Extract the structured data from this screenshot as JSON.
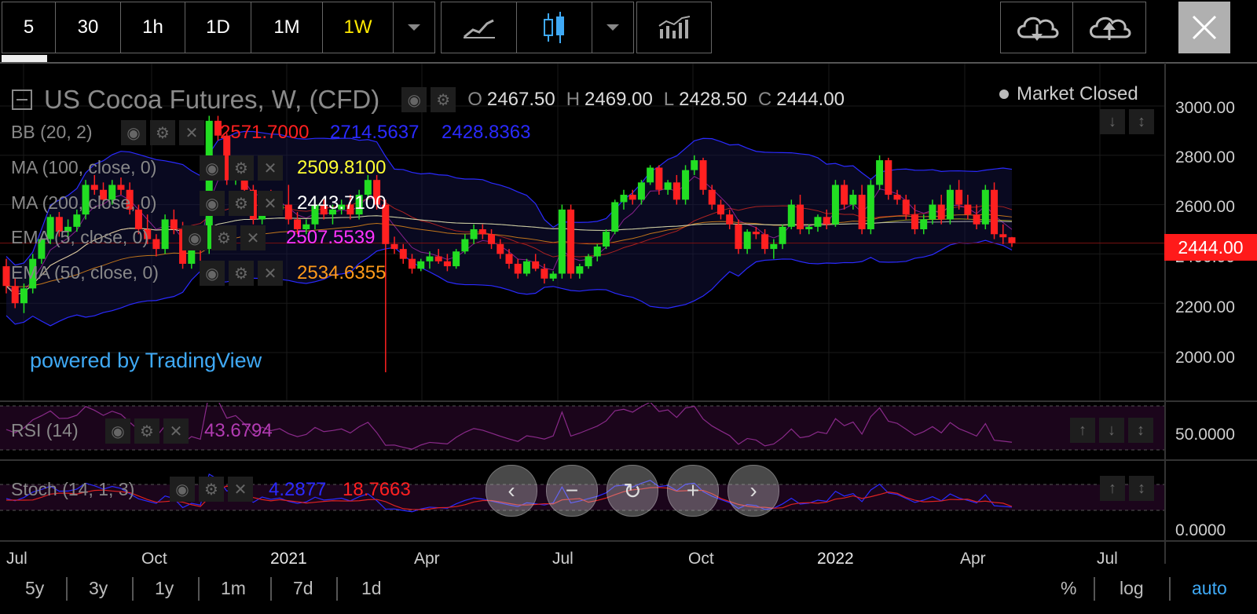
{
  "toolbar": {
    "intervals": [
      "5",
      "30",
      "1h",
      "1D",
      "1M",
      "1W"
    ],
    "active_interval": "1W"
  },
  "chart": {
    "title": "US Cocoa Futures, W, (CFD)",
    "ohlc": {
      "o_label": "O",
      "o": "2467.50",
      "h_label": "H",
      "h": "2469.00",
      "l_label": "L",
      "l": "2428.50",
      "c_label": "C",
      "c": "2444.00"
    },
    "market_status": "Market Closed",
    "last_price": "2444.00",
    "watermark": "powered by TradingView"
  },
  "indicators": {
    "bb": {
      "label": "BB (20, 2)",
      "v1": "2571.7000",
      "v2": "2714.5637",
      "v3": "2428.8363",
      "c1": "#ff2020",
      "c2": "#2a2aff",
      "c3": "#2a2aff"
    },
    "ma100": {
      "label": "MA (100, close, 0)",
      "value": "2509.8100",
      "color": "#ffff33"
    },
    "ma200": {
      "label": "MA (200, close, 0)",
      "value": "2443.7100",
      "color": "#ffffff"
    },
    "ema_a": {
      "label": "EMA (5, close, 0)",
      "value": "2507.5539",
      "color": "#ff33ff"
    },
    "ema50": {
      "label": "EMA (50, close, 0)",
      "value": "2534.6355",
      "color": "#ff9a1a"
    },
    "rsi": {
      "label": "RSI (14)",
      "value": "43.6794",
      "color": "#b23bb2"
    },
    "stoch": {
      "label": "Stoch (14, 1, 3)",
      "k": "4.2877",
      "d": "18.7663",
      "kc": "#2a2aff",
      "dc": "#ff2020"
    }
  },
  "y_axis": [
    "3000.00",
    "2800.00",
    "2600.00",
    "2400.00",
    "2200.00",
    "2000.00"
  ],
  "rsi_axis": [
    "50.0000"
  ],
  "stoch_axis": [
    "0.0000"
  ],
  "x_axis": [
    "Jul",
    "Oct",
    "2021",
    "Apr",
    "Jul",
    "Oct",
    "2022",
    "Apr",
    "Jul"
  ],
  "ranges": [
    "5y",
    "3y",
    "1y",
    "1m",
    "7d",
    "1d"
  ],
  "scale_options": {
    "percent": "%",
    "log": "log",
    "auto": "auto"
  },
  "colors": {
    "up": "#22dd22",
    "down": "#ff2020",
    "accent": "#ffea00",
    "auto": "#3fa9f5",
    "watermark": "#3fa9f5"
  },
  "chart_data": {
    "type": "candlestick",
    "title": "US Cocoa Futures, W, (CFD)",
    "ylim": [
      1900,
      3050
    ],
    "x_ticks": [
      "Jul",
      "Oct",
      "2021",
      "Apr",
      "Jul",
      "Oct",
      "2022",
      "Apr",
      "Jul"
    ],
    "y_ticks": [
      2000,
      2200,
      2400,
      2600,
      2800,
      3000
    ],
    "candles": [
      [
        2350,
        2380,
        2240,
        2270
      ],
      [
        2270,
        2300,
        2180,
        2200
      ],
      [
        2200,
        2280,
        2160,
        2260
      ],
      [
        2260,
        2400,
        2240,
        2380
      ],
      [
        2380,
        2470,
        2360,
        2460
      ],
      [
        2460,
        2560,
        2440,
        2550
      ],
      [
        2550,
        2570,
        2470,
        2490
      ],
      [
        2490,
        2540,
        2460,
        2510
      ],
      [
        2510,
        2580,
        2490,
        2560
      ],
      [
        2560,
        2700,
        2540,
        2680
      ],
      [
        2680,
        2720,
        2640,
        2660
      ],
      [
        2660,
        2690,
        2600,
        2620
      ],
      [
        2620,
        2700,
        2600,
        2680
      ],
      [
        2680,
        2710,
        2640,
        2660
      ],
      [
        2660,
        2690,
        2560,
        2580
      ],
      [
        2580,
        2600,
        2480,
        2500
      ],
      [
        2500,
        2560,
        2440,
        2460
      ],
      [
        2460,
        2480,
        2390,
        2420
      ],
      [
        2420,
        2560,
        2400,
        2540
      ],
      [
        2540,
        2580,
        2480,
        2500
      ],
      [
        2500,
        2530,
        2340,
        2360
      ],
      [
        2360,
        2460,
        2340,
        2440
      ],
      [
        2440,
        2460,
        2360,
        2420
      ],
      [
        2420,
        2960,
        2400,
        2940
      ],
      [
        2940,
        2960,
        2860,
        2880
      ],
      [
        2880,
        2890,
        2680,
        2700
      ],
      [
        2700,
        2760,
        2680,
        2740
      ],
      [
        2740,
        2760,
        2640,
        2660
      ],
      [
        2660,
        2680,
        2520,
        2540
      ],
      [
        2540,
        2640,
        2520,
        2620
      ],
      [
        2620,
        2660,
        2560,
        2580
      ],
      [
        2580,
        2640,
        2560,
        2600
      ],
      [
        2600,
        2680,
        2520,
        2540
      ],
      [
        2540,
        2570,
        2480,
        2500
      ],
      [
        2500,
        2540,
        2480,
        2520
      ],
      [
        2520,
        2620,
        2500,
        2600
      ],
      [
        2600,
        2620,
        2540,
        2560
      ],
      [
        2560,
        2600,
        2520,
        2580
      ],
      [
        2580,
        2620,
        2560,
        2600
      ],
      [
        2600,
        2640,
        2540,
        2560
      ],
      [
        2560,
        2660,
        2540,
        2640
      ],
      [
        2640,
        2720,
        2620,
        2700
      ],
      [
        2700,
        2720,
        2580,
        2600
      ],
      [
        2600,
        2620,
        1920,
        2440
      ],
      [
        2440,
        2470,
        2400,
        2420
      ],
      [
        2420,
        2440,
        2360,
        2380
      ],
      [
        2380,
        2400,
        2320,
        2340
      ],
      [
        2340,
        2380,
        2330,
        2370
      ],
      [
        2370,
        2410,
        2340,
        2390
      ],
      [
        2390,
        2420,
        2360,
        2370
      ],
      [
        2370,
        2400,
        2330,
        2350
      ],
      [
        2350,
        2420,
        2340,
        2410
      ],
      [
        2410,
        2480,
        2400,
        2460
      ],
      [
        2460,
        2520,
        2440,
        2500
      ],
      [
        2500,
        2520,
        2460,
        2480
      ],
      [
        2480,
        2500,
        2420,
        2440
      ],
      [
        2440,
        2460,
        2380,
        2400
      ],
      [
        2400,
        2420,
        2340,
        2360
      ],
      [
        2360,
        2380,
        2300,
        2320
      ],
      [
        2320,
        2380,
        2310,
        2370
      ],
      [
        2370,
        2400,
        2330,
        2340
      ],
      [
        2340,
        2360,
        2280,
        2300
      ],
      [
        2300,
        2330,
        2290,
        2320
      ],
      [
        2320,
        2600,
        2300,
        2580
      ],
      [
        2580,
        2600,
        2300,
        2320
      ],
      [
        2320,
        2360,
        2300,
        2350
      ],
      [
        2350,
        2400,
        2340,
        2390
      ],
      [
        2390,
        2440,
        2370,
        2430
      ],
      [
        2430,
        2500,
        2420,
        2490
      ],
      [
        2490,
        2620,
        2480,
        2610
      ],
      [
        2610,
        2660,
        2580,
        2640
      ],
      [
        2640,
        2660,
        2600,
        2620
      ],
      [
        2620,
        2700,
        2600,
        2690
      ],
      [
        2690,
        2760,
        2680,
        2750
      ],
      [
        2750,
        2760,
        2640,
        2660
      ],
      [
        2660,
        2700,
        2640,
        2690
      ],
      [
        2690,
        2720,
        2600,
        2620
      ],
      [
        2620,
        2760,
        2600,
        2740
      ],
      [
        2740,
        2800,
        2720,
        2780
      ],
      [
        2780,
        2790,
        2640,
        2660
      ],
      [
        2660,
        2680,
        2580,
        2600
      ],
      [
        2600,
        2620,
        2540,
        2560
      ],
      [
        2560,
        2580,
        2500,
        2520
      ],
      [
        2520,
        2540,
        2400,
        2420
      ],
      [
        2420,
        2500,
        2400,
        2490
      ],
      [
        2490,
        2510,
        2460,
        2480
      ],
      [
        2480,
        2500,
        2400,
        2420
      ],
      [
        2420,
        2460,
        2380,
        2440
      ],
      [
        2440,
        2520,
        2420,
        2510
      ],
      [
        2510,
        2620,
        2500,
        2600
      ],
      [
        2600,
        2640,
        2480,
        2500
      ],
      [
        2500,
        2520,
        2480,
        2510
      ],
      [
        2510,
        2560,
        2490,
        2550
      ],
      [
        2550,
        2580,
        2500,
        2520
      ],
      [
        2520,
        2700,
        2510,
        2680
      ],
      [
        2680,
        2700,
        2580,
        2600
      ],
      [
        2600,
        2660,
        2580,
        2640
      ],
      [
        2640,
        2680,
        2480,
        2500
      ],
      [
        2500,
        2700,
        2480,
        2680
      ],
      [
        2680,
        2800,
        2660,
        2780
      ],
      [
        2780,
        2790,
        2620,
        2640
      ],
      [
        2640,
        2660,
        2600,
        2620
      ],
      [
        2620,
        2640,
        2540,
        2560
      ],
      [
        2560,
        2600,
        2480,
        2500
      ],
      [
        2500,
        2560,
        2480,
        2540
      ],
      [
        2540,
        2620,
        2520,
        2600
      ],
      [
        2600,
        2640,
        2520,
        2540
      ],
      [
        2540,
        2680,
        2520,
        2660
      ],
      [
        2660,
        2700,
        2580,
        2600
      ],
      [
        2600,
        2640,
        2540,
        2560
      ],
      [
        2560,
        2600,
        2500,
        2520
      ],
      [
        2520,
        2680,
        2500,
        2660
      ],
      [
        2660,
        2690,
        2460,
        2480
      ],
      [
        2480,
        2520,
        2440,
        2467.5
      ],
      [
        2467.5,
        2469,
        2428.5,
        2444
      ]
    ]
  }
}
